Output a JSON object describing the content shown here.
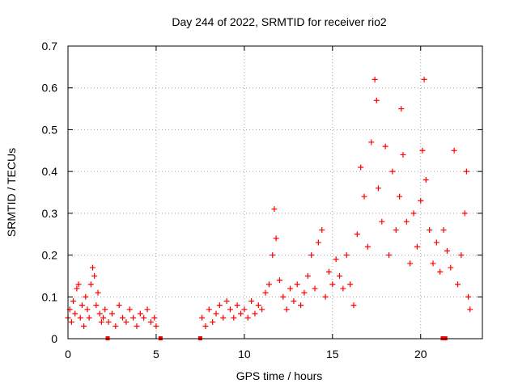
{
  "chart_data": {
    "type": "scatter",
    "title": "Day 244 of 2022, SRMTID for receiver rio2",
    "xlabel": "GPS time / hours",
    "ylabel": "SRMTID / TECUs",
    "xlim": [
      0,
      23.5
    ],
    "ylim": [
      0,
      0.7
    ],
    "x_ticks": [
      0,
      5,
      10,
      15,
      20
    ],
    "x_tick_labels": [
      "0",
      "5",
      "10",
      "15",
      "20"
    ],
    "y_ticks": [
      0,
      0.1,
      0.2,
      0.3,
      0.4,
      0.5,
      0.6,
      0.7
    ],
    "y_tick_labels": [
      "0",
      "0.1",
      "0.2",
      "0.3",
      "0.4",
      "0.5",
      "0.6",
      "0.7"
    ],
    "grid": true,
    "marker": "+",
    "color": "#ff0000",
    "zero_markers_x": [
      2.25,
      5.25,
      7.5,
      21.25,
      21.4
    ],
    "series": [
      {
        "name": "SRMTID",
        "points": [
          [
            0.0,
            0.05
          ],
          [
            0.1,
            0.07
          ],
          [
            0.2,
            0.04
          ],
          [
            0.3,
            0.09
          ],
          [
            0.4,
            0.06
          ],
          [
            0.5,
            0.12
          ],
          [
            0.6,
            0.13
          ],
          [
            0.7,
            0.05
          ],
          [
            0.8,
            0.08
          ],
          [
            0.9,
            0.03
          ],
          [
            1.0,
            0.1
          ],
          [
            1.1,
            0.07
          ],
          [
            1.2,
            0.05
          ],
          [
            1.3,
            0.13
          ],
          [
            1.4,
            0.17
          ],
          [
            1.5,
            0.15
          ],
          [
            1.6,
            0.08
          ],
          [
            1.7,
            0.11
          ],
          [
            1.8,
            0.06
          ],
          [
            1.9,
            0.04
          ],
          [
            2.0,
            0.05
          ],
          [
            2.1,
            0.07
          ],
          [
            2.3,
            0.04
          ],
          [
            2.5,
            0.06
          ],
          [
            2.7,
            0.03
          ],
          [
            2.9,
            0.08
          ],
          [
            3.1,
            0.05
          ],
          [
            3.3,
            0.04
          ],
          [
            3.5,
            0.07
          ],
          [
            3.7,
            0.05
          ],
          [
            3.9,
            0.03
          ],
          [
            4.1,
            0.06
          ],
          [
            4.3,
            0.05
          ],
          [
            4.5,
            0.07
          ],
          [
            4.7,
            0.04
          ],
          [
            4.9,
            0.05
          ],
          [
            5.0,
            0.03
          ],
          [
            7.6,
            0.05
          ],
          [
            7.8,
            0.03
          ],
          [
            8.0,
            0.07
          ],
          [
            8.2,
            0.04
          ],
          [
            8.4,
            0.06
          ],
          [
            8.6,
            0.08
          ],
          [
            8.8,
            0.05
          ],
          [
            9.0,
            0.09
          ],
          [
            9.2,
            0.07
          ],
          [
            9.4,
            0.05
          ],
          [
            9.6,
            0.08
          ],
          [
            9.8,
            0.06
          ],
          [
            10.0,
            0.07
          ],
          [
            10.2,
            0.05
          ],
          [
            10.4,
            0.09
          ],
          [
            10.6,
            0.06
          ],
          [
            10.8,
            0.08
          ],
          [
            11.0,
            0.07
          ],
          [
            11.2,
            0.11
          ],
          [
            11.4,
            0.13
          ],
          [
            11.6,
            0.2
          ],
          [
            11.7,
            0.31
          ],
          [
            11.8,
            0.24
          ],
          [
            12.0,
            0.14
          ],
          [
            12.2,
            0.1
          ],
          [
            12.4,
            0.07
          ],
          [
            12.6,
            0.12
          ],
          [
            12.8,
            0.09
          ],
          [
            13.0,
            0.13
          ],
          [
            13.2,
            0.08
          ],
          [
            13.4,
            0.11
          ],
          [
            13.6,
            0.15
          ],
          [
            13.8,
            0.2
          ],
          [
            14.0,
            0.12
          ],
          [
            14.2,
            0.23
          ],
          [
            14.4,
            0.26
          ],
          [
            14.6,
            0.1
          ],
          [
            14.8,
            0.16
          ],
          [
            15.0,
            0.13
          ],
          [
            15.2,
            0.19
          ],
          [
            15.4,
            0.15
          ],
          [
            15.6,
            0.12
          ],
          [
            15.8,
            0.2
          ],
          [
            16.0,
            0.13
          ],
          [
            16.2,
            0.08
          ],
          [
            16.4,
            0.25
          ],
          [
            16.6,
            0.41
          ],
          [
            16.8,
            0.34
          ],
          [
            17.0,
            0.22
          ],
          [
            17.2,
            0.47
          ],
          [
            17.4,
            0.62
          ],
          [
            17.5,
            0.57
          ],
          [
            17.6,
            0.36
          ],
          [
            17.8,
            0.28
          ],
          [
            18.0,
            0.46
          ],
          [
            18.2,
            0.2
          ],
          [
            18.4,
            0.4
          ],
          [
            18.6,
            0.26
          ],
          [
            18.8,
            0.34
          ],
          [
            18.9,
            0.55
          ],
          [
            19.0,
            0.44
          ],
          [
            19.2,
            0.28
          ],
          [
            19.4,
            0.18
          ],
          [
            19.6,
            0.3
          ],
          [
            19.8,
            0.22
          ],
          [
            20.0,
            0.33
          ],
          [
            20.1,
            0.45
          ],
          [
            20.2,
            0.62
          ],
          [
            20.3,
            0.38
          ],
          [
            20.5,
            0.26
          ],
          [
            20.7,
            0.18
          ],
          [
            20.9,
            0.23
          ],
          [
            21.1,
            0.16
          ],
          [
            21.3,
            0.26
          ],
          [
            21.5,
            0.21
          ],
          [
            21.7,
            0.17
          ],
          [
            21.9,
            0.45
          ],
          [
            22.1,
            0.13
          ],
          [
            22.3,
            0.2
          ],
          [
            22.5,
            0.3
          ],
          [
            22.6,
            0.4
          ],
          [
            22.7,
            0.1
          ],
          [
            22.8,
            0.07
          ]
        ]
      }
    ]
  }
}
